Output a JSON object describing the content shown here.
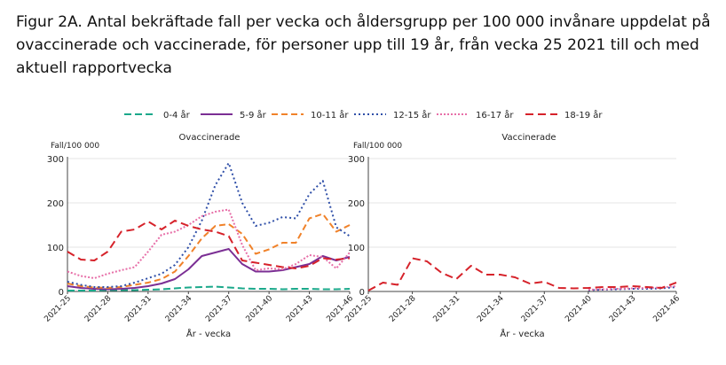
{
  "page": {
    "title": "Figur 2A. Antal bekräftade fall per vecka och åldersgrupp per 100 000 invånare uppdelat på ovaccinerade och vaccinerade, för personer upp till 19 år, från vecka 25 2021 till och med aktuell rapportvecka"
  },
  "legend": [
    {
      "key": "age0_4",
      "label": "0-4 år",
      "color": "#1aa88a",
      "dash": "8,4"
    },
    {
      "key": "age5_9",
      "label": "5-9 år",
      "color": "#7b2f94",
      "dash": ""
    },
    {
      "key": "age10_11",
      "label": "10-11 år",
      "color": "#f0822a",
      "dash": "7,4"
    },
    {
      "key": "age12_15",
      "label": "12-15 år",
      "color": "#2f4fa8",
      "dash": "2,3"
    },
    {
      "key": "age16_17",
      "label": "16-17 år",
      "color": "#e76fa8",
      "dash": "2,2"
    },
    {
      "key": "age18_19",
      "label": "18-19 år",
      "color": "#d6222a",
      "dash": "9,5"
    }
  ],
  "chart_data": [
    {
      "type": "line",
      "title": "Ovaccinerade",
      "ylabel": "Fall/100 000",
      "xlabel": "År - vecka",
      "ylim": [
        0,
        300
      ],
      "yticks": [
        0,
        100,
        200,
        300
      ],
      "x": [
        "2021-25",
        "2021-26",
        "2021-27",
        "2021-28",
        "2021-29",
        "2021-30",
        "2021-31",
        "2021-32",
        "2021-33",
        "2021-34",
        "2021-35",
        "2021-36",
        "2021-37",
        "2021-38",
        "2021-39",
        "2021-40",
        "2021-41",
        "2021-42",
        "2021-43",
        "2021-44",
        "2021-45",
        "2021-46"
      ],
      "xticklabels": [
        "2021-25",
        "2021-28",
        "2021-31",
        "2021-34",
        "2021-37",
        "2021-40",
        "2021-43",
        "2021-46"
      ],
      "series": [
        {
          "name": "0-4 år",
          "key": "age0_4",
          "values": [
            2,
            2,
            2,
            3,
            3,
            3,
            4,
            5,
            7,
            9,
            10,
            11,
            9,
            7,
            6,
            6,
            5,
            6,
            6,
            5,
            5,
            6
          ]
        },
        {
          "name": "5-9 år",
          "key": "age5_9",
          "values": [
            12,
            8,
            6,
            5,
            6,
            8,
            12,
            18,
            28,
            50,
            80,
            88,
            96,
            62,
            45,
            45,
            48,
            55,
            62,
            80,
            70,
            78
          ]
        },
        {
          "name": "10-11 år",
          "key": "age10_11",
          "values": [
            18,
            12,
            9,
            8,
            10,
            15,
            20,
            28,
            45,
            80,
            120,
            148,
            152,
            130,
            85,
            95,
            110,
            110,
            165,
            175,
            135,
            150
          ]
        },
        {
          "name": "12-15 år",
          "key": "age12_15",
          "values": [
            22,
            15,
            10,
            10,
            12,
            20,
            30,
            40,
            60,
            100,
            160,
            240,
            290,
            200,
            148,
            155,
            168,
            165,
            220,
            250,
            145,
            125
          ]
        },
        {
          "name": "16-17 år",
          "key": "age16_17",
          "values": [
            45,
            35,
            30,
            40,
            48,
            55,
            90,
            128,
            135,
            150,
            170,
            180,
            185,
            105,
            48,
            52,
            50,
            62,
            82,
            78,
            52,
            88
          ]
        },
        {
          "name": "18-19 år",
          "key": "age18_19",
          "values": [
            90,
            72,
            70,
            90,
            135,
            140,
            158,
            140,
            160,
            148,
            140,
            135,
            125,
            70,
            65,
            60,
            55,
            52,
            58,
            75,
            72,
            75
          ]
        }
      ]
    },
    {
      "type": "line",
      "title": "Vaccinerade",
      "ylabel": "Fall/100 000",
      "xlabel": "År - vecka",
      "ylim": [
        0,
        300
      ],
      "yticks": [
        0,
        100,
        200,
        300
      ],
      "x": [
        "2021-25",
        "2021-26",
        "2021-27",
        "2021-28",
        "2021-29",
        "2021-30",
        "2021-31",
        "2021-32",
        "2021-33",
        "2021-34",
        "2021-35",
        "2021-36",
        "2021-37",
        "2021-38",
        "2021-39",
        "2021-40",
        "2021-41",
        "2021-42",
        "2021-43",
        "2021-44",
        "2021-45",
        "2021-46"
      ],
      "xticklabels": [
        "2021-25",
        "2021-28",
        "2021-31",
        "2021-34",
        "2021-37",
        "2021-40",
        "2021-43",
        "2021-46"
      ],
      "series": [
        {
          "name": "12-15 år",
          "key": "age12_15",
          "values": [
            null,
            null,
            null,
            null,
            null,
            null,
            null,
            null,
            null,
            null,
            null,
            null,
            null,
            null,
            null,
            3,
            4,
            5,
            6,
            6,
            7,
            10
          ]
        },
        {
          "name": "16-17 år",
          "key": "age16_17",
          "values": [
            null,
            null,
            null,
            null,
            null,
            null,
            null,
            null,
            null,
            null,
            null,
            null,
            null,
            null,
            null,
            4,
            5,
            6,
            7,
            8,
            9,
            12
          ]
        },
        {
          "name": "18-19 år",
          "key": "age18_19",
          "values": [
            2,
            20,
            15,
            75,
            68,
            42,
            28,
            58,
            38,
            38,
            32,
            18,
            22,
            8,
            7,
            8,
            10,
            10,
            12,
            10,
            8,
            20
          ]
        }
      ]
    }
  ]
}
